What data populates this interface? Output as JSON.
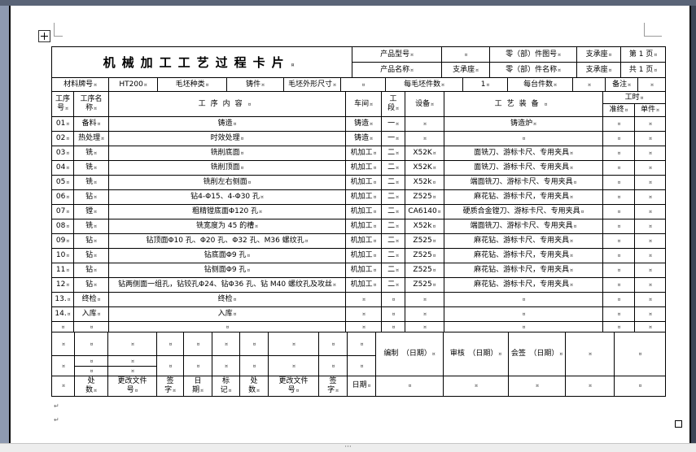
{
  "window": {
    "scrollbar_dots": "···"
  },
  "formatting": {
    "cell_mark": "¤",
    "para_mark": "↵"
  },
  "sheet": {
    "title": "机械加工工艺过程卡片",
    "top": {
      "product_model_label": "产品型号",
      "product_model_value": "",
      "part_drawing_no_label": "零（部）件图号",
      "part_drawing_no_value": "支承座",
      "page_no": "第 1 页",
      "product_name_label": "产品名称",
      "product_name_value": "支承座",
      "part_name_label": "零（部）件名称",
      "part_name_value": "支承座",
      "total_pages": "共 1 页"
    },
    "material": {
      "material_label": "材料牌号",
      "material_value": "HT200",
      "blank_kind_label": "毛坯种类",
      "blank_kind_value": "铸件",
      "blank_size_label": "毛坯外形尺寸",
      "blank_size_value": "",
      "per_blank_label": "每毛坯件数",
      "per_blank_value": "1",
      "per_machine_label": "每台件数",
      "per_machine_value": "",
      "note_label": "备注",
      "note_value": ""
    },
    "columns": {
      "op_no": "工序\n号",
      "op_name": "工序名\n称",
      "op_content": "工序内容",
      "shop": "车间",
      "section": "工\n段",
      "equipment": "设备",
      "tooling": "工艺装备",
      "hours": "工时",
      "prep": "准终",
      "unit": "单件"
    },
    "rows": [
      {
        "no": "01",
        "name": "备料",
        "content": "铸造",
        "shop": "铸造",
        "section": "一",
        "equip": "",
        "tooling": "铸造炉",
        "prep": "",
        "unit": ""
      },
      {
        "no": "02",
        "name": "热处理",
        "content": "时效处理",
        "shop": "铸造",
        "section": "一",
        "equip": "",
        "tooling": "",
        "prep": "",
        "unit": ""
      },
      {
        "no": "03",
        "name": "铣",
        "content": "铣削底面",
        "shop": "机加工",
        "section": "二",
        "equip": "X52K",
        "tooling": "面铣刀、游标卡尺、专用夹具",
        "prep": "",
        "unit": ""
      },
      {
        "no": "04",
        "name": "铣",
        "content": "铣削顶面",
        "shop": "机加工",
        "section": "二",
        "equip": "X52K",
        "tooling": "面铣刀、游标卡尺、专用夹具",
        "prep": "",
        "unit": ""
      },
      {
        "no": "05",
        "name": "铣",
        "content": "铣削左右侧面",
        "shop": "机加工",
        "section": "二",
        "equip": "X52k",
        "tooling": "端面铣刀、游标卡尺、专用夹具",
        "prep": "",
        "unit": ""
      },
      {
        "no": "06",
        "name": "钻",
        "content": "钻4-Φ15、4-Φ30 孔",
        "shop": "机加工",
        "section": "二",
        "equip": "Z525",
        "tooling": "麻花钻、游标卡尺，专用夹具",
        "prep": "",
        "unit": ""
      },
      {
        "no": "07",
        "name": "镗",
        "content": "粗精镗底面Φ120 孔",
        "shop": "机加工",
        "section": "二",
        "equip": "CA6140",
        "tooling": "硬质合金镗刀、游标卡尺、专用夹具",
        "prep": "",
        "unit": ""
      },
      {
        "no": "08",
        "name": "铣",
        "content": "铣宽度为 45 的槽",
        "shop": "机加工",
        "section": "二",
        "equip": "X52k",
        "tooling": "端面铣刀、游标卡尺、专用夹具",
        "prep": "",
        "unit": ""
      },
      {
        "no": "09",
        "name": "钻",
        "content": "钻顶面Φ10 孔、Φ20 孔、Φ32 孔、M36 螺纹孔",
        "shop": "机加工",
        "section": "二",
        "equip": "Z525",
        "tooling": "麻花钻、游标卡尺、专用夹具",
        "prep": "",
        "unit": ""
      },
      {
        "no": "10",
        "name": "钻",
        "content": "钻底面Φ9 孔",
        "shop": "机加工",
        "section": "二",
        "equip": "Z525",
        "tooling": "麻花钻、游标卡尺，专用夹具",
        "prep": "",
        "unit": ""
      },
      {
        "no": "11",
        "name": "钻",
        "content": "钻侧面Φ9 孔",
        "shop": "机加工",
        "section": "二",
        "equip": "Z525",
        "tooling": "麻花钻、游标卡尺，专用夹具",
        "prep": "",
        "unit": ""
      },
      {
        "no": "12",
        "name": "钻",
        "content": "钻两侧面一组孔，钻铰孔Φ24、钻Φ36 孔、钻 M40 螺纹孔及攻丝",
        "shop": "机加工",
        "section": "二",
        "equip": "Z525",
        "tooling": "麻花钻、游标卡尺，专用夹具",
        "prep": "",
        "unit": ""
      },
      {
        "no": "13.",
        "name": "终检",
        "content": "终检",
        "shop": "",
        "section": "",
        "equip": "",
        "tooling": "",
        "prep": "",
        "unit": ""
      },
      {
        "no": "14.",
        "name": "入库",
        "content": "入库",
        "shop": "",
        "section": "",
        "equip": "",
        "tooling": "",
        "prep": "",
        "unit": ""
      },
      {
        "no": "",
        "name": "",
        "content": "",
        "shop": "",
        "section": "",
        "equip": "",
        "tooling": "",
        "prep": "",
        "unit": ""
      }
    ],
    "footer": {
      "left": [
        "",
        "处\n数",
        "更改文件\n号",
        "签\n字",
        "日\n期",
        "标\n记",
        "处\n数",
        "更改文件\n号",
        "签\n字",
        "日期"
      ],
      "right": [
        "编制　（日期）",
        "审核　（日期）",
        "会签　（日期）"
      ]
    }
  }
}
